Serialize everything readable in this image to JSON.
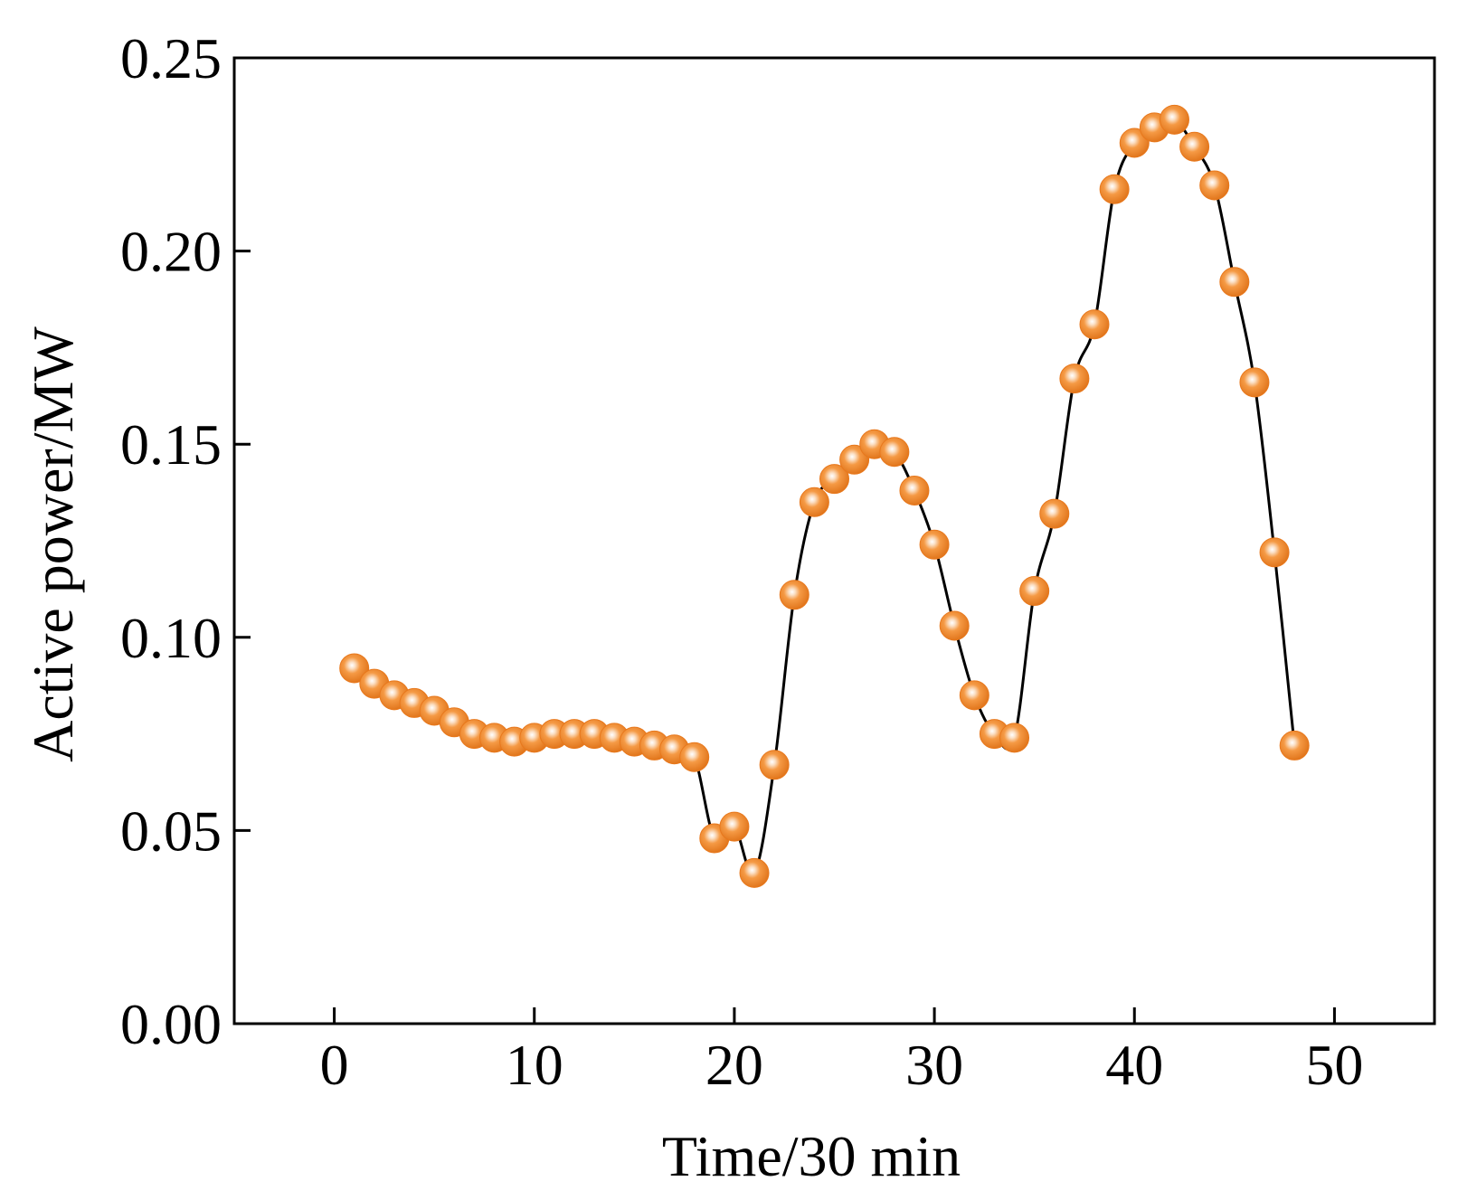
{
  "chart_data": {
    "type": "line",
    "title": "",
    "xlabel": "Time/30 min",
    "ylabel": "Active power/MW",
    "xlim": [
      -5,
      55
    ],
    "ylim": [
      0,
      0.25
    ],
    "x_ticks": [
      0,
      10,
      20,
      30,
      40,
      50
    ],
    "x_tick_labels": [
      "0",
      "10",
      "20",
      "30",
      "40",
      "50"
    ],
    "y_ticks": [
      0,
      0.05,
      0.1,
      0.15,
      0.2,
      0.25
    ],
    "y_tick_labels": [
      "0.00",
      "0.05",
      "0.10",
      "0.15",
      "0.20",
      "0.25"
    ],
    "grid": false,
    "legend": "none",
    "series": [
      {
        "name": "Active power",
        "x": [
          1,
          2,
          3,
          4,
          5,
          6,
          7,
          8,
          9,
          10,
          11,
          12,
          13,
          14,
          15,
          16,
          17,
          18,
          19,
          20,
          21,
          22,
          23,
          24,
          25,
          26,
          27,
          28,
          29,
          30,
          31,
          32,
          33,
          34,
          35,
          36,
          37,
          38,
          39,
          40,
          41,
          42,
          43,
          44,
          45,
          46,
          47,
          48
        ],
        "values": [
          0.092,
          0.088,
          0.085,
          0.083,
          0.081,
          0.078,
          0.075,
          0.074,
          0.073,
          0.074,
          0.075,
          0.075,
          0.075,
          0.074,
          0.073,
          0.072,
          0.071,
          0.069,
          0.048,
          0.051,
          0.039,
          0.067,
          0.111,
          0.135,
          0.141,
          0.146,
          0.15,
          0.148,
          0.138,
          0.124,
          0.103,
          0.085,
          0.075,
          0.074,
          0.112,
          0.132,
          0.167,
          0.181,
          0.216,
          0.228,
          0.232,
          0.234,
          0.227,
          0.217,
          0.192,
          0.166,
          0.122,
          0.072
        ],
        "line_color": "#000000",
        "marker_color": "#F08A2C"
      }
    ]
  }
}
